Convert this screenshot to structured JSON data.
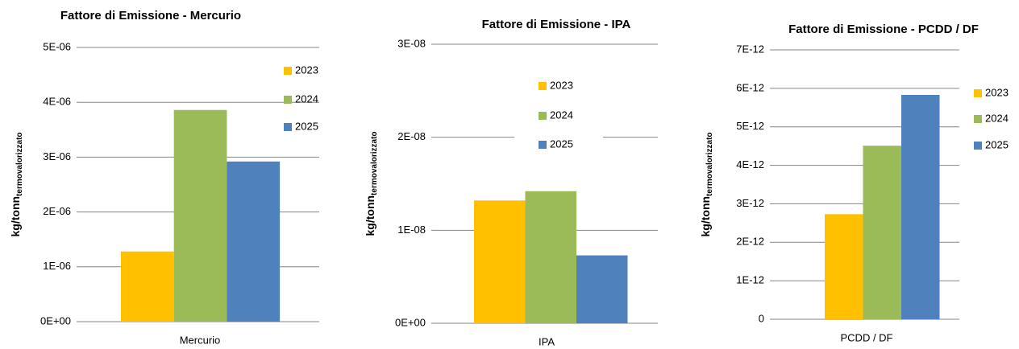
{
  "chart_data": [
    {
      "type": "bar",
      "title": "Fattore di Emissione - Mercurio",
      "ylabel": "kg/tonn",
      "ylabel_sub": "termovalorizzato",
      "categories": [
        "Mercurio"
      ],
      "series": [
        {
          "name": "2023",
          "color": "#ffc000",
          "values": [
            1.28e-06
          ]
        },
        {
          "name": "2024",
          "color": "#9bbb59",
          "values": [
            3.86e-06
          ]
        },
        {
          "name": "2025",
          "color": "#4f81bd",
          "values": [
            2.92e-06
          ]
        }
      ],
      "ylim": [
        0,
        5e-06
      ],
      "yticks": [
        {
          "value": 0,
          "label": "0E+00"
        },
        {
          "value": 1e-06,
          "label": "1E-06"
        },
        {
          "value": 2e-06,
          "label": "2E-06"
        },
        {
          "value": 3e-06,
          "label": "3E-06"
        },
        {
          "value": 4e-06,
          "label": "4E-06"
        },
        {
          "value": 5e-06,
          "label": "5E-06"
        }
      ],
      "grid": true,
      "legend": "right"
    },
    {
      "type": "bar",
      "title": "Fattore di Emissione - IPA",
      "ylabel": "kg/tonn",
      "ylabel_sub": "termovalorizzato",
      "categories": [
        "IPA"
      ],
      "series": [
        {
          "name": "2023",
          "color": "#ffc000",
          "values": [
            1.32e-08
          ]
        },
        {
          "name": "2024",
          "color": "#9bbb59",
          "values": [
            1.42e-08
          ]
        },
        {
          "name": "2025",
          "color": "#4f81bd",
          "values": [
            7.3e-09
          ]
        }
      ],
      "ylim": [
        0,
        3e-08
      ],
      "yticks": [
        {
          "value": 0,
          "label": "0E+00"
        },
        {
          "value": 1e-08,
          "label": "1E-08"
        },
        {
          "value": 2e-08,
          "label": "2E-08"
        },
        {
          "value": 3e-08,
          "label": "3E-08"
        }
      ],
      "grid": true,
      "legend": "center"
    },
    {
      "type": "bar",
      "title": "Fattore di Emissione - PCDD / DF",
      "ylabel": "kg/tonn",
      "ylabel_sub": "termovalorizzato",
      "categories": [
        "PCDD / DF"
      ],
      "series": [
        {
          "name": "2023",
          "color": "#ffc000",
          "values": [
            2.73e-12
          ]
        },
        {
          "name": "2024",
          "color": "#9bbb59",
          "values": [
            4.51e-12
          ]
        },
        {
          "name": "2025",
          "color": "#4f81bd",
          "values": [
            5.83e-12
          ]
        }
      ],
      "ylim": [
        0,
        7e-12
      ],
      "yticks": [
        0,
        {
          "value": 1e-12,
          "label": "1E-12"
        },
        {
          "value": 2e-12,
          "label": "2E-12"
        },
        {
          "value": 3e-12,
          "label": "3E-12"
        },
        {
          "value": 4e-12,
          "label": "4E-12"
        },
        {
          "value": 5e-12,
          "label": "5E-12"
        },
        {
          "value": 6e-12,
          "label": "6E-12"
        },
        {
          "value": 7e-12,
          "label": "7E-12"
        }
      ],
      "grid": true,
      "legend": "outside-right"
    }
  ]
}
